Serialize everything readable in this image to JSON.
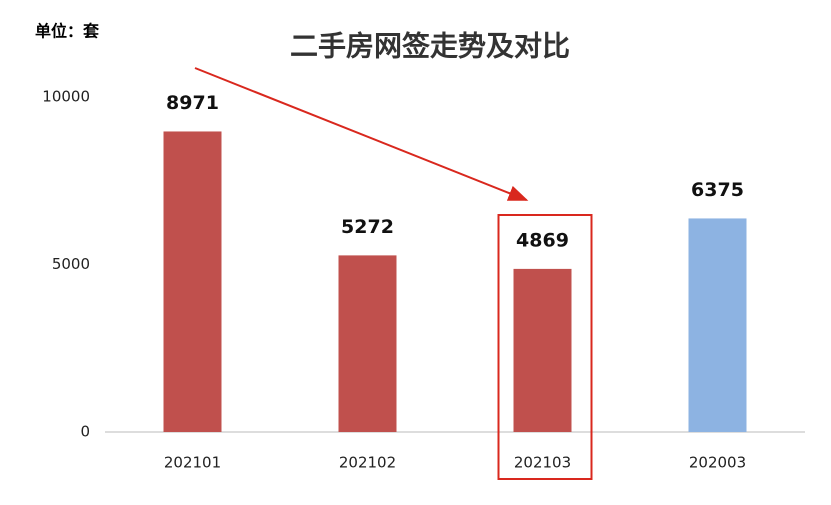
{
  "chart_data": {
    "type": "bar",
    "title": "二手房网签走势及对比",
    "unit_label": "单位：套",
    "categories": [
      "202101",
      "202102",
      "202103",
      "202003"
    ],
    "values": [
      8971,
      5272,
      4869,
      6375
    ],
    "colors": [
      "#c0504d",
      "#c0504d",
      "#c0504d",
      "#8db3e2"
    ],
    "ylim": [
      0,
      10000
    ],
    "yticks": [
      0,
      5000,
      10000
    ],
    "grid": false
  }
}
